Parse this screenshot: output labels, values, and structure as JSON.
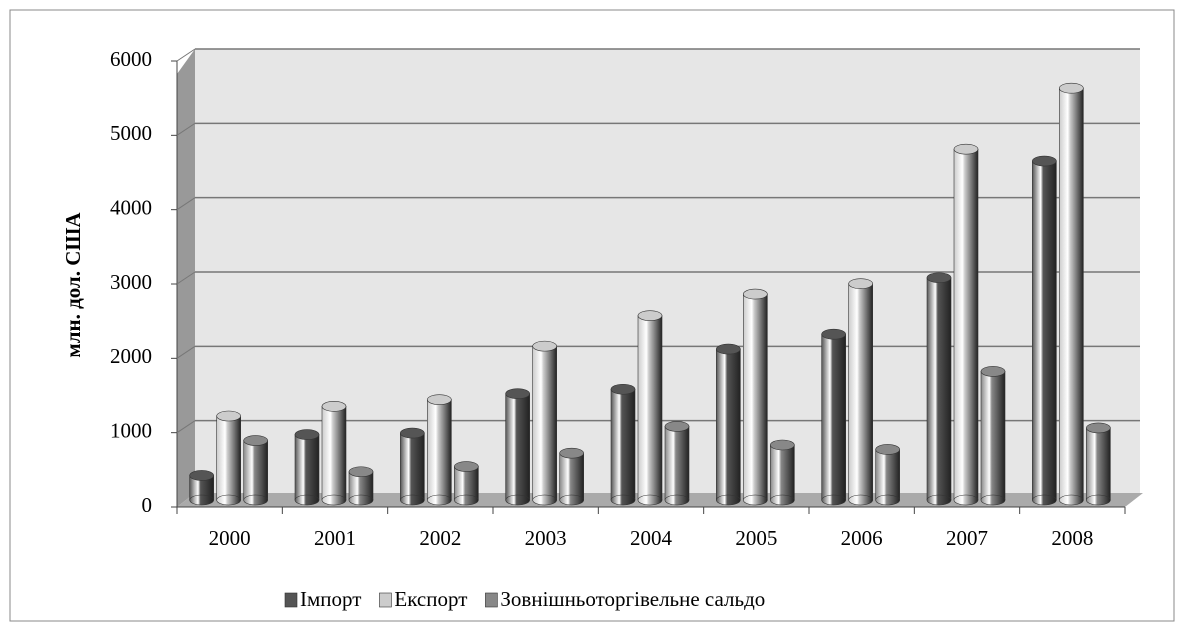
{
  "chart_data": {
    "type": "bar",
    "ylabel": "млн. дол. США",
    "categories": [
      "2000",
      "2001",
      "2002",
      "2003",
      "2004",
      "2005",
      "2006",
      "2007",
      "2008"
    ],
    "series": [
      {
        "name": "Імпорт",
        "color": "#555555",
        "values": [
          330,
          880,
          900,
          1430,
          1490,
          2030,
          2230,
          2990,
          4560
        ]
      },
      {
        "name": "Експорт",
        "color": "#cccccc",
        "values": [
          1130,
          1260,
          1350,
          2070,
          2480,
          2770,
          2910,
          4720,
          5540
        ]
      },
      {
        "name": "Зовнішньоторгівельне сальдо",
        "color": "#888888",
        "values": [
          800,
          380,
          450,
          630,
          990,
          740,
          680,
          1730,
          970
        ]
      }
    ],
    "ylim": [
      0,
      6000
    ],
    "yticks": [
      0,
      1000,
      2000,
      3000,
      4000,
      5000,
      6000
    ],
    "grid": true,
    "legend": "bottom"
  }
}
